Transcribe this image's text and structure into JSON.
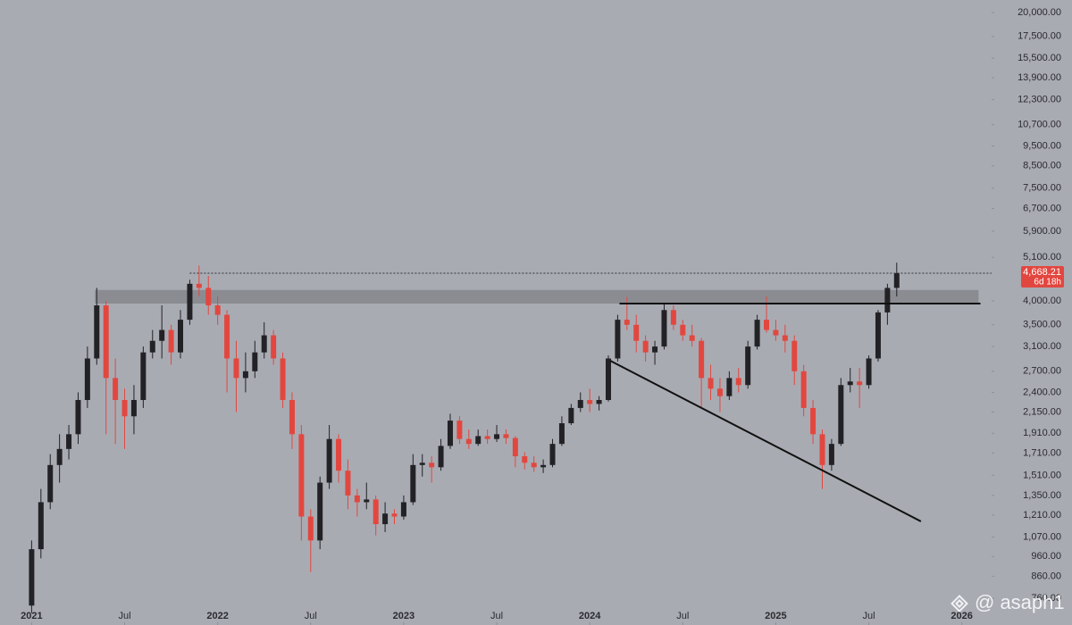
{
  "chart_data": {
    "type": "candlestick",
    "log_scale": true,
    "up_color": "#222226",
    "down_color": "#e2473f",
    "background": "#a9abb3",
    "x": [
      2021.0,
      2021.05,
      2021.1,
      2021.15,
      2021.2,
      2021.25,
      2021.3,
      2021.35,
      2021.4,
      2021.45,
      2021.5,
      2021.55,
      2021.6,
      2021.65,
      2021.7,
      2021.75,
      2021.8,
      2021.85,
      2021.9,
      2021.95,
      2022.0,
      2022.05,
      2022.1,
      2022.15,
      2022.2,
      2022.25,
      2022.3,
      2022.35,
      2022.4,
      2022.45,
      2022.5,
      2022.55,
      2022.6,
      2022.65,
      2022.7,
      2022.75,
      2022.8,
      2022.85,
      2022.9,
      2022.95,
      2023.0,
      2023.05,
      2023.1,
      2023.15,
      2023.2,
      2023.25,
      2023.3,
      2023.35,
      2023.4,
      2023.45,
      2023.5,
      2023.55,
      2023.6,
      2023.65,
      2023.7,
      2023.75,
      2023.8,
      2023.85,
      2023.9,
      2023.95,
      2024.0,
      2024.05,
      2024.1,
      2024.15,
      2024.2,
      2024.25,
      2024.3,
      2024.35,
      2024.4,
      2024.45,
      2024.5,
      2024.55,
      2024.6,
      2024.65,
      2024.7,
      2024.75,
      2024.8,
      2024.85,
      2024.9,
      2024.95,
      2025.0,
      2025.05,
      2025.1,
      2025.15,
      2025.2,
      2025.25,
      2025.3,
      2025.35,
      2025.4,
      2025.45,
      2025.5,
      2025.55,
      2025.6,
      2025.65
    ],
    "open": [
      730,
      1000,
      1300,
      1600,
      1750,
      1900,
      2300,
      2900,
      3900,
      2600,
      2300,
      2100,
      2300,
      3000,
      3200,
      3400,
      3000,
      3600,
      4400,
      4300,
      3900,
      3700,
      2900,
      2600,
      2700,
      3000,
      3300,
      2900,
      2300,
      1900,
      1200,
      1050,
      1450,
      1850,
      1550,
      1350,
      1300,
      1320,
      1150,
      1220,
      1200,
      1300,
      1600,
      1620,
      1580,
      1780,
      2050,
      1850,
      1800,
      1880,
      1850,
      1900,
      1860,
      1680,
      1620,
      1580,
      1600,
      1800,
      2020,
      2200,
      2300,
      2250,
      2300,
      2900,
      3600,
      3500,
      3200,
      3000,
      3100,
      3800,
      3500,
      3300,
      3200,
      2600,
      2450,
      2350,
      2600,
      2500,
      3100,
      3600,
      3400,
      3300,
      3200,
      2700,
      2200,
      1900,
      1600,
      1800,
      2500,
      2550,
      2500,
      2900,
      3750,
      4300
    ],
    "high": [
      1050,
      1400,
      1700,
      1900,
      2000,
      2400,
      3100,
      4300,
      4000,
      2900,
      2450,
      2500,
      3100,
      3400,
      3900,
      3500,
      3800,
      4500,
      4870,
      4600,
      4100,
      3800,
      3200,
      3000,
      3200,
      3550,
      3400,
      3000,
      2400,
      2000,
      1250,
      1500,
      2000,
      1900,
      1650,
      1400,
      1450,
      1350,
      1300,
      1250,
      1350,
      1700,
      1700,
      1680,
      1850,
      2130,
      2100,
      1950,
      1950,
      1950,
      2000,
      1950,
      1880,
      1720,
      1680,
      1650,
      1850,
      2100,
      2250,
      2400,
      2450,
      2350,
      2950,
      3700,
      4090,
      3700,
      3300,
      3200,
      3950,
      3900,
      3600,
      3500,
      3250,
      2800,
      2600,
      2700,
      2750,
      3200,
      3700,
      4100,
      3600,
      3500,
      3300,
      2800,
      2300,
      1950,
      1850,
      2600,
      2750,
      2750,
      2950,
      3800,
      4400,
      4950
    ],
    "low": [
      700,
      950,
      1250,
      1450,
      1650,
      1800,
      2200,
      2800,
      1900,
      1800,
      1750,
      1900,
      2200,
      2900,
      2900,
      2800,
      2900,
      3500,
      4100,
      3700,
      3500,
      2400,
      2150,
      2400,
      2600,
      2900,
      2800,
      2200,
      1750,
      1050,
      880,
      1000,
      1400,
      1450,
      1250,
      1200,
      1250,
      1080,
      1100,
      1150,
      1180,
      1280,
      1500,
      1450,
      1550,
      1750,
      1800,
      1750,
      1780,
      1800,
      1820,
      1800,
      1580,
      1560,
      1540,
      1530,
      1580,
      1780,
      2000,
      2150,
      2150,
      2170,
      2280,
      2850,
      3400,
      3000,
      2850,
      2800,
      3050,
      3400,
      3200,
      3100,
      2200,
      2300,
      2150,
      2300,
      2400,
      2450,
      3050,
      3350,
      3200,
      3000,
      2500,
      2100,
      1800,
      1400,
      1550,
      1780,
      2400,
      2200,
      2450,
      2850,
      3500,
      4100
    ],
    "close": [
      1000,
      1300,
      1600,
      1750,
      1900,
      2300,
      2900,
      3900,
      2600,
      2300,
      2100,
      2300,
      3000,
      3200,
      3400,
      3000,
      3600,
      4400,
      4300,
      3900,
      3700,
      2900,
      2600,
      2700,
      3000,
      3300,
      2900,
      2300,
      1900,
      1200,
      1050,
      1450,
      1850,
      1550,
      1350,
      1300,
      1320,
      1150,
      1220,
      1200,
      1300,
      1600,
      1620,
      1580,
      1780,
      2050,
      1850,
      1800,
      1880,
      1850,
      1900,
      1860,
      1680,
      1620,
      1580,
      1600,
      1800,
      2020,
      2200,
      2300,
      2250,
      2300,
      2900,
      3600,
      3500,
      3200,
      3000,
      3100,
      3800,
      3500,
      3300,
      3200,
      2600,
      2450,
      2350,
      2600,
      2500,
      3100,
      3600,
      3400,
      3300,
      3200,
      2700,
      2200,
      1900,
      1600,
      1800,
      2500,
      2550,
      2500,
      2900,
      3750,
      4300,
      4668.21
    ],
    "xlim": [
      2020.83,
      2026.16
    ],
    "ylim": [
      655,
      21450
    ],
    "xticks": [
      {
        "value": 2021,
        "label": "2021"
      },
      {
        "value": 2021.5,
        "label": "Jul"
      },
      {
        "value": 2022,
        "label": "2022"
      },
      {
        "value": 2022.5,
        "label": "Jul"
      },
      {
        "value": 2023,
        "label": "2023"
      },
      {
        "value": 2023.5,
        "label": "Jul"
      },
      {
        "value": 2024,
        "label": "2024"
      },
      {
        "value": 2024.5,
        "label": "Jul"
      },
      {
        "value": 2025,
        "label": "2025"
      },
      {
        "value": 2025.5,
        "label": "Jul"
      },
      {
        "value": 2026,
        "label": "2026"
      }
    ],
    "yticks": [
      {
        "value": 20000,
        "label": "20,000.00"
      },
      {
        "value": 17500,
        "label": "17,500.00"
      },
      {
        "value": 15500,
        "label": "15,500.00"
      },
      {
        "value": 13900,
        "label": "13,900.00"
      },
      {
        "value": 12300,
        "label": "12,300.00"
      },
      {
        "value": 10700,
        "label": "10,700.00"
      },
      {
        "value": 9500,
        "label": "9,500.00"
      },
      {
        "value": 8500,
        "label": "8,500.00"
      },
      {
        "value": 7500,
        "label": "7,500.00"
      },
      {
        "value": 6700,
        "label": "6,700.00"
      },
      {
        "value": 5900,
        "label": "5,900.00"
      },
      {
        "value": 5100,
        "label": "5,100.00"
      },
      {
        "value": 4000,
        "label": "4,000.00"
      },
      {
        "value": 3500,
        "label": "3,500.00"
      },
      {
        "value": 3100,
        "label": "3,100.00"
      },
      {
        "value": 2700,
        "label": "2,700.00"
      },
      {
        "value": 2400,
        "label": "2,400.00"
      },
      {
        "value": 2150,
        "label": "2,150.00"
      },
      {
        "value": 1910,
        "label": "1,910.00"
      },
      {
        "value": 1710,
        "label": "1,710.00"
      },
      {
        "value": 1510,
        "label": "1,510.00"
      },
      {
        "value": 1350,
        "label": "1,350.00"
      },
      {
        "value": 1210,
        "label": "1,210.00"
      },
      {
        "value": 1070,
        "label": "1,070.00"
      },
      {
        "value": 960,
        "label": "960.00"
      },
      {
        "value": 860,
        "label": "860.00"
      },
      {
        "value": 760,
        "label": "760.00"
      }
    ],
    "zone": {
      "x": [
        2021.34,
        2026.09
      ],
      "y": [
        3940,
        4250
      ],
      "color": "#86868c"
    },
    "lines": [
      {
        "x": [
          2024.16,
          2026.1
        ],
        "y": [
          3940,
          3940
        ],
        "color": "#111111"
      },
      {
        "x": [
          2024.11,
          2025.78
        ],
        "y": [
          2864,
          1168
        ],
        "color": "#111111"
      }
    ],
    "price_tag": {
      "value": 4668.21,
      "label": "4,668.21",
      "countdown": "6d 18h",
      "color": "#e2473f",
      "line_start": 2021.85
    },
    "watermark": "@ asaph1"
  }
}
